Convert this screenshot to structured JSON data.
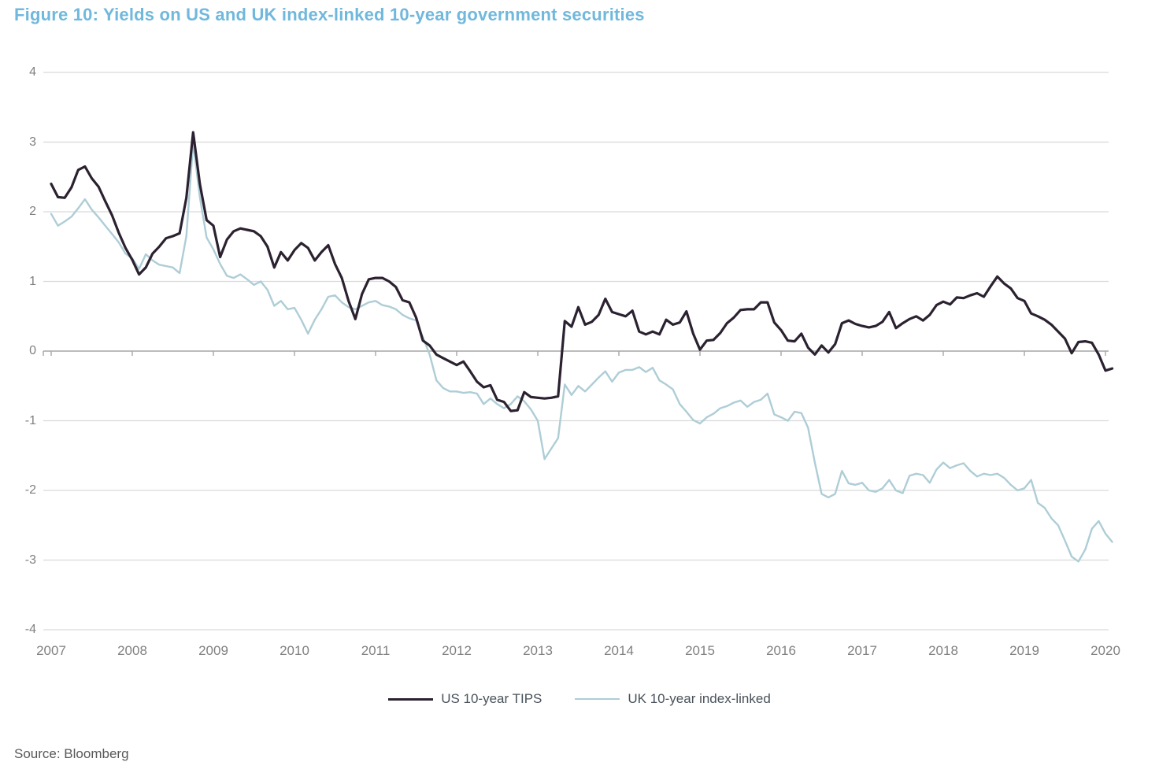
{
  "figure": {
    "title": "Figure 10: Yields on US and UK index-linked 10-year government securities",
    "source": "Source: Bloomberg"
  },
  "colors": {
    "title_text": "#70b8dc",
    "us_line": "#2b2130",
    "uk_line": "#aecdd6",
    "axis_text": "#808080",
    "gridline": "#d9d9d9",
    "zero_axis": "#a6a6a6",
    "legend_text": "#49525a",
    "source_text": "#595959"
  },
  "chart_data": {
    "type": "line",
    "title": "Figure 10: Yields on US and UK index-linked 10-year government securities",
    "xlabel": "",
    "ylabel": "",
    "ylim": [
      -4,
      4
    ],
    "xlim": [
      2007,
      2020.25
    ],
    "grid": "horizontal",
    "legend_position": "bottom-center",
    "x_start_year": 2007,
    "x_interval": "monthly",
    "x_tick_labels": [
      "2007",
      "2008",
      "2009",
      "2010",
      "2011",
      "2012",
      "2013",
      "2014",
      "2015",
      "2016",
      "2017",
      "2018",
      "2019",
      "2020"
    ],
    "y_tick_labels": [
      "4",
      "3",
      "2",
      "1",
      "0",
      "-1",
      "-2",
      "-3",
      "-4"
    ],
    "y_tick_values": [
      4,
      3,
      2,
      1,
      0,
      -1,
      -2,
      -3,
      -4
    ],
    "series": [
      {
        "name": "US 10-year TIPS",
        "color": "#2b2130",
        "values": [
          2.4,
          2.21,
          2.2,
          2.35,
          2.6,
          2.65,
          2.48,
          2.36,
          2.15,
          1.95,
          1.7,
          1.48,
          1.31,
          1.1,
          1.2,
          1.4,
          1.5,
          1.62,
          1.65,
          1.69,
          2.2,
          3.14,
          2.4,
          1.88,
          1.8,
          1.35,
          1.6,
          1.72,
          1.76,
          1.74,
          1.72,
          1.65,
          1.5,
          1.2,
          1.42,
          1.3,
          1.45,
          1.55,
          1.48,
          1.3,
          1.42,
          1.52,
          1.25,
          1.05,
          0.72,
          0.46,
          0.82,
          1.03,
          1.05,
          1.05,
          1.0,
          0.92,
          0.73,
          0.7,
          0.48,
          0.15,
          0.08,
          -0.05,
          -0.1,
          -0.15,
          -0.2,
          -0.15,
          -0.29,
          -0.44,
          -0.52,
          -0.49,
          -0.7,
          -0.73,
          -0.86,
          -0.85,
          -0.59,
          -0.66,
          -0.67,
          -0.68,
          -0.67,
          -0.65,
          0.43,
          0.35,
          0.63,
          0.38,
          0.42,
          0.52,
          0.75,
          0.56,
          0.53,
          0.5,
          0.58,
          0.28,
          0.24,
          0.28,
          0.24,
          0.45,
          0.38,
          0.41,
          0.57,
          0.25,
          0.02,
          0.15,
          0.16,
          0.26,
          0.4,
          0.48,
          0.59,
          0.6,
          0.6,
          0.7,
          0.7,
          0.41,
          0.3,
          0.15,
          0.14,
          0.25,
          0.05,
          -0.05,
          0.08,
          -0.02,
          0.1,
          0.4,
          0.44,
          0.39,
          0.36,
          0.34,
          0.36,
          0.42,
          0.56,
          0.33,
          0.4,
          0.46,
          0.5,
          0.44,
          0.52,
          0.66,
          0.71,
          0.67,
          0.77,
          0.76,
          0.8,
          0.83,
          0.78,
          0.93,
          1.07,
          0.97,
          0.9,
          0.76,
          0.72,
          0.54,
          0.5,
          0.45,
          0.38,
          0.28,
          0.18,
          -0.03,
          0.13,
          0.14,
          0.12,
          -0.05,
          -0.28,
          -0.25
        ]
      },
      {
        "name": "UK 10-year index-linked",
        "color": "#aecdd6",
        "values": [
          1.97,
          1.8,
          1.86,
          1.93,
          2.05,
          2.18,
          2.03,
          1.92,
          1.8,
          1.68,
          1.56,
          1.4,
          1.33,
          1.18,
          1.39,
          1.3,
          1.24,
          1.22,
          1.2,
          1.12,
          1.65,
          2.99,
          2.21,
          1.63,
          1.46,
          1.25,
          1.08,
          1.05,
          1.1,
          1.03,
          0.95,
          1.0,
          0.88,
          0.65,
          0.72,
          0.6,
          0.62,
          0.45,
          0.25,
          0.45,
          0.6,
          0.78,
          0.8,
          0.7,
          0.63,
          0.6,
          0.65,
          0.7,
          0.72,
          0.66,
          0.64,
          0.6,
          0.52,
          0.47,
          0.44,
          0.2,
          -0.05,
          -0.42,
          -0.53,
          -0.58,
          -0.58,
          -0.6,
          -0.59,
          -0.61,
          -0.76,
          -0.68,
          -0.76,
          -0.82,
          -0.76,
          -0.65,
          -0.72,
          -0.84,
          -1.0,
          -1.55,
          -1.4,
          -1.25,
          -0.48,
          -0.63,
          -0.5,
          -0.58,
          -0.48,
          -0.38,
          -0.29,
          -0.44,
          -0.31,
          -0.27,
          -0.27,
          -0.23,
          -0.3,
          -0.24,
          -0.42,
          -0.48,
          -0.55,
          -0.76,
          -0.87,
          -0.99,
          -1.04,
          -0.95,
          -0.9,
          -0.82,
          -0.79,
          -0.74,
          -0.71,
          -0.8,
          -0.73,
          -0.7,
          -0.61,
          -0.91,
          -0.95,
          -1.0,
          -0.87,
          -0.89,
          -1.1,
          -1.6,
          -2.05,
          -2.1,
          -2.05,
          -1.72,
          -1.9,
          -1.92,
          -1.89,
          -2.0,
          -2.02,
          -1.97,
          -1.85,
          -2.0,
          -2.04,
          -1.79,
          -1.76,
          -1.78,
          -1.89,
          -1.7,
          -1.6,
          -1.68,
          -1.64,
          -1.61,
          -1.72,
          -1.8,
          -1.76,
          -1.78,
          -1.76,
          -1.82,
          -1.92,
          -2.0,
          -1.97,
          -1.85,
          -2.18,
          -2.25,
          -2.4,
          -2.5,
          -2.72,
          -2.95,
          -3.02,
          -2.85,
          -2.55,
          -2.44,
          -2.62,
          -2.74
        ]
      }
    ]
  }
}
